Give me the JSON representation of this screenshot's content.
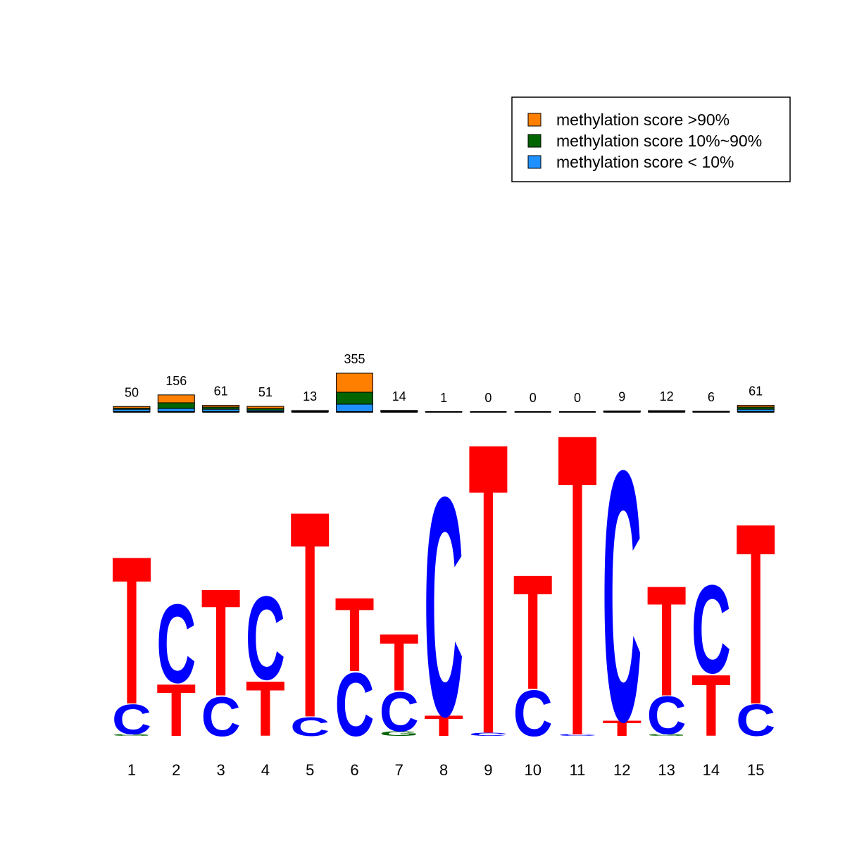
{
  "chart_data": {
    "type": "logo",
    "positions": [
      1,
      2,
      3,
      4,
      5,
      6,
      7,
      8,
      9,
      10,
      11,
      12,
      13,
      14,
      15
    ],
    "totals": [
      50,
      156,
      61,
      51,
      13,
      355,
      14,
      1,
      0,
      0,
      0,
      9,
      12,
      6,
      61
    ],
    "series": [
      {
        "name": "methylation score >90%",
        "color": "#ff8000",
        "values": [
          15,
          72,
          16,
          20,
          4,
          174,
          5,
          1,
          0,
          0,
          0,
          3,
          4,
          2,
          16
        ]
      },
      {
        "name": "methylation score 10%~90%",
        "color": "#006400",
        "values": [
          10,
          52,
          20,
          16,
          4,
          110,
          4,
          0,
          0,
          0,
          0,
          3,
          4,
          2,
          20
        ]
      },
      {
        "name": "methylation score < 10%",
        "color": "#1e90ff",
        "values": [
          25,
          32,
          25,
          15,
          5,
          71,
          5,
          0,
          0,
          0,
          0,
          3,
          4,
          2,
          25
        ]
      }
    ],
    "letter_colors": {
      "A": "#00a000",
      "C": "#0000ff",
      "G": "#006400",
      "T": "#ff0000"
    },
    "logo": [
      [
        {
          "letter": "G",
          "height": 0.01
        },
        {
          "letter": "C",
          "height": 0.19
        },
        {
          "letter": "T",
          "height": 0.94
        }
      ],
      [
        {
          "letter": "T",
          "height": 0.33
        },
        {
          "letter": "C",
          "height": 0.5
        }
      ],
      [
        {
          "letter": "C",
          "height": 0.25
        },
        {
          "letter": "T",
          "height": 0.68
        }
      ],
      [
        {
          "letter": "T",
          "height": 0.35
        },
        {
          "letter": "C",
          "height": 0.53
        }
      ],
      [
        {
          "letter": "C",
          "height": 0.12
        },
        {
          "letter": "T",
          "height": 1.31
        }
      ],
      [
        {
          "letter": "C",
          "height": 0.4
        },
        {
          "letter": "T",
          "height": 0.47
        }
      ],
      [
        {
          "letter": "G",
          "height": 0.03
        },
        {
          "letter": "C",
          "height": 0.25
        },
        {
          "letter": "T",
          "height": 0.36
        }
      ],
      [
        {
          "letter": "T",
          "height": 0.13
        },
        {
          "letter": "C",
          "height": 1.39
        }
      ],
      [
        {
          "letter": "C",
          "height": 0.02
        },
        {
          "letter": "T",
          "height": 1.85
        }
      ],
      [
        {
          "letter": "C",
          "height": 0.29
        },
        {
          "letter": "T",
          "height": 0.73
        }
      ],
      [
        {
          "letter": "C",
          "height": 0.01
        },
        {
          "letter": "T",
          "height": 1.92
        }
      ],
      [
        {
          "letter": "T",
          "height": 0.1
        },
        {
          "letter": "C",
          "height": 1.59
        }
      ],
      [
        {
          "letter": "G",
          "height": 0.01
        },
        {
          "letter": "C",
          "height": 0.24
        },
        {
          "letter": "T",
          "height": 0.7
        }
      ],
      [
        {
          "letter": "T",
          "height": 0.39
        },
        {
          "letter": "C",
          "height": 0.56
        }
      ],
      [
        {
          "letter": "C",
          "height": 0.2
        },
        {
          "letter": "T",
          "height": 1.15
        }
      ]
    ]
  }
}
